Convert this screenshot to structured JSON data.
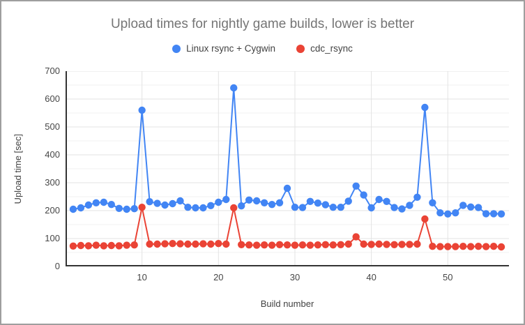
{
  "chart_data": {
    "type": "line",
    "title": "Upload times for nightly game builds, lower is better",
    "xlabel": "Build number",
    "ylabel": "Upload time [sec]",
    "legend_position": "top",
    "grid": true,
    "marker": "circle",
    "xlim": [
      0,
      58
    ],
    "ylim": [
      0,
      700
    ],
    "yticks": [
      0,
      100,
      200,
      300,
      400,
      500,
      600,
      700
    ],
    "xticks": [
      10,
      20,
      30,
      40,
      50
    ],
    "x": [
      1,
      2,
      3,
      4,
      5,
      6,
      7,
      8,
      9,
      10,
      11,
      12,
      13,
      14,
      15,
      16,
      17,
      18,
      19,
      20,
      21,
      22,
      23,
      24,
      25,
      26,
      27,
      28,
      29,
      30,
      31,
      32,
      33,
      34,
      35,
      36,
      37,
      38,
      39,
      40,
      41,
      42,
      43,
      44,
      45,
      46,
      47,
      48,
      49,
      50,
      51,
      52,
      53,
      54,
      55,
      56,
      57
    ],
    "series": [
      {
        "name": "Linux rsync + Cygwin",
        "color": "#4285F4",
        "values": [
          205,
          210,
          220,
          228,
          230,
          222,
          208,
          205,
          207,
          560,
          232,
          226,
          220,
          225,
          235,
          212,
          210,
          210,
          218,
          230,
          240,
          640,
          217,
          238,
          235,
          228,
          222,
          228,
          280,
          212,
          211,
          233,
          227,
          221,
          212,
          212,
          234,
          288,
          256,
          210,
          240,
          233,
          211,
          206,
          219,
          248,
          570,
          228,
          192,
          188,
          192,
          219,
          213,
          211,
          189,
          189,
          188
        ]
      },
      {
        "name": "cdc_rsync",
        "color": "#EA4335",
        "values": [
          73,
          75,
          74,
          76,
          74,
          75,
          74,
          76,
          77,
          212,
          80,
          80,
          81,
          82,
          81,
          80,
          80,
          81,
          80,
          82,
          80,
          210,
          78,
          77,
          76,
          77,
          76,
          78,
          77,
          76,
          77,
          76,
          77,
          78,
          77,
          78,
          80,
          106,
          80,
          79,
          80,
          79,
          78,
          79,
          79,
          80,
          170,
          72,
          71,
          71,
          71,
          72,
          71,
          72,
          71,
          72,
          70
        ]
      }
    ],
    "colors": {
      "grid_major": "#e3e3e3",
      "grid_minor": "#f2f2f2",
      "axis": "#333333"
    }
  }
}
